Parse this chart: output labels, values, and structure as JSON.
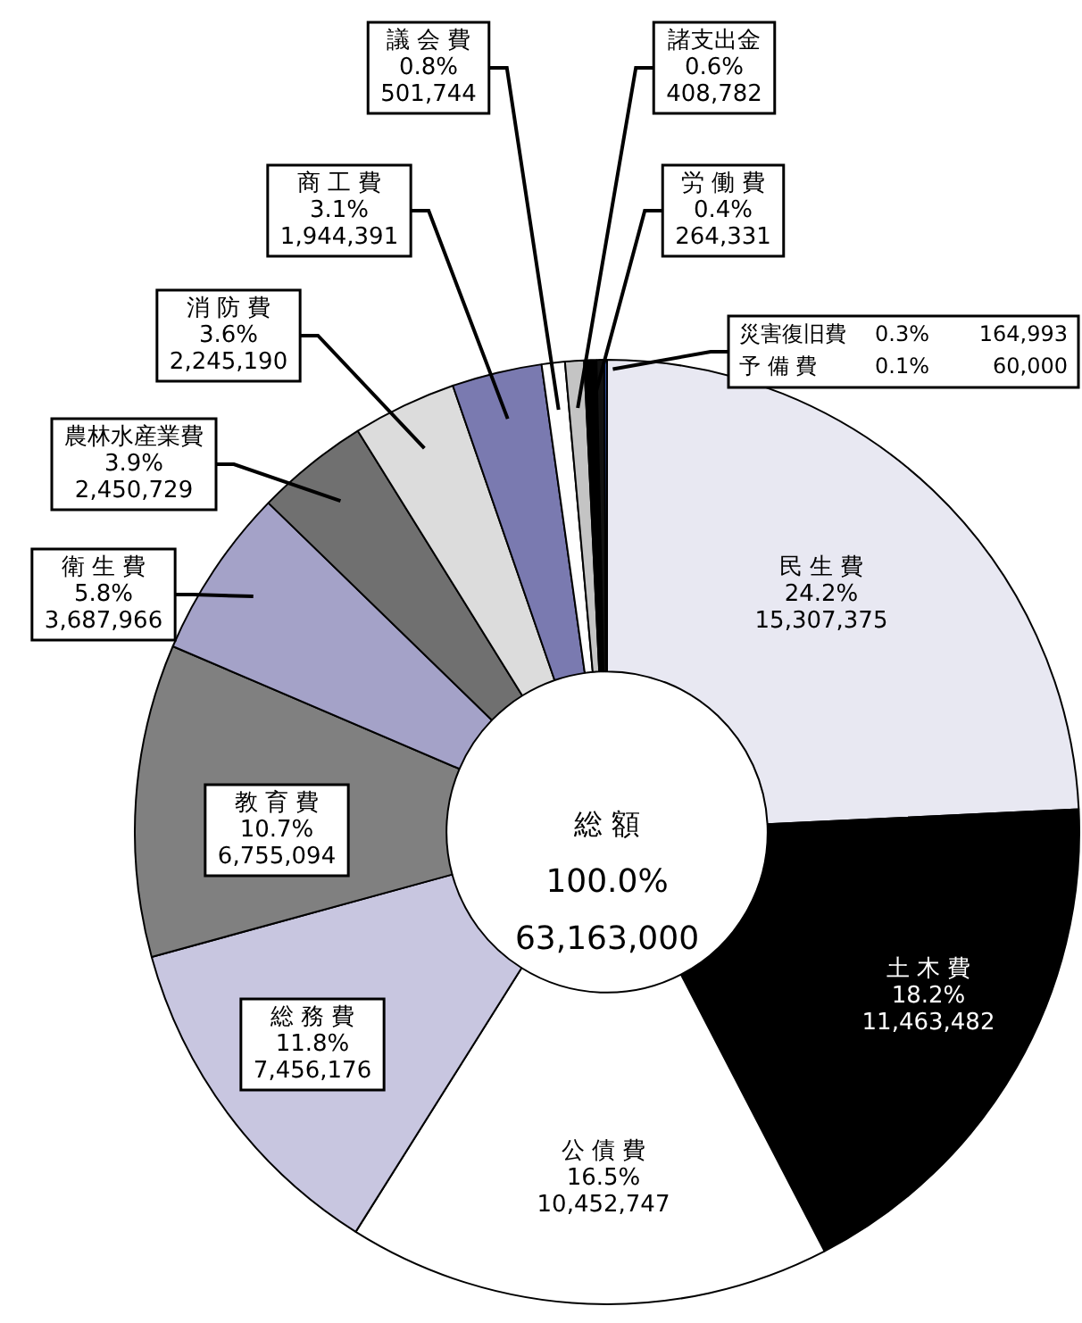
{
  "chart_data": {
    "type": "donut",
    "categories": [
      "民 生 費",
      "土 木 費",
      "公 債 費",
      "総 務 費",
      "教 育 費",
      "衛 生 費",
      "農林水産業費",
      "消 防 費",
      "商 工 費",
      "議 会 費",
      "諸支出金",
      "労 働 費",
      "災害復旧費",
      "予 備 費"
    ],
    "values": [
      15307375,
      11463482,
      10452747,
      7456176,
      6755094,
      3687966,
      2450729,
      2245190,
      1944391,
      501744,
      408782,
      264331,
      164993,
      60000
    ],
    "colors": [
      "#e8e8f2",
      "#000000",
      "#ffffff",
      "#c8c6e0",
      "#808080",
      "#a4a2c8",
      "#707070",
      "#dcdcdc",
      "#7a7ab0",
      "#ffffff",
      "#c4c4c4",
      "#000000",
      "#111111",
      "#2f4f9f"
    ],
    "value_labels": [
      "24.2%\n15,307,375",
      "18.2%\n11,463,482",
      "16.5%\n10,452,747",
      "11.8%\n7,456,176",
      "10.7%\n6,755,094",
      "5.8%\n3,687,966",
      "3.9%\n2,450,729",
      "3.6%\n2,245,190",
      "3.1%\n1,944,391",
      "0.8%\n501,744",
      "0.6%\n408,782",
      "0.4%\n264,331",
      "0.3%\n164,993",
      "0.1%\n60,000"
    ],
    "annotations": [
      "総 額",
      "100.0%",
      "63,163,000"
    ],
    "legend": false
  }
}
